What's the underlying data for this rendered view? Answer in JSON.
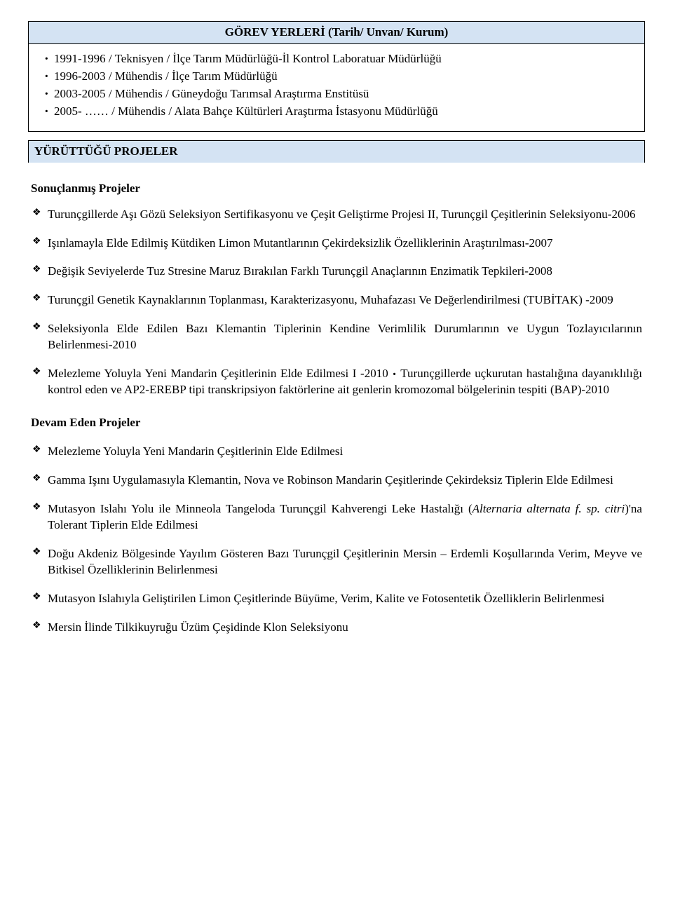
{
  "section1": {
    "title": "GÖREV YERLERİ (Tarih/ Unvan/ Kurum)",
    "items": [
      "1991-1996 / Teknisyen / İlçe Tarım Müdürlüğü-İl Kontrol Laboratuar Müdürlüğü",
      "1996-2003 / Mühendis /  İlçe Tarım Müdürlüğü",
      "2003-2005 / Mühendis / Güneydoğu Tarımsal Araştırma Enstitüsü",
      "2005- …… / Mühendis / Alata Bahçe Kültürleri Araştırma İstasyonu Müdürlüğü"
    ]
  },
  "section2": {
    "title": "YÜRÜTTÜĞÜ PROJELER",
    "completedTitle": "Sonuçlanmış Projeler",
    "completed": [
      "Turunçgillerde Aşı Gözü Seleksiyon Sertifikasyonu ve Çeşit Geliştirme Projesi II, Turunçgil Çeşitlerinin Seleksiyonu-2006",
      "Işınlamayla Elde Edilmiş Kütdiken Limon Mutantlarının Çekirdeksizlik Özelliklerinin Araştırılması-2007",
      "Değişik Seviyelerde Tuz Stresine Maruz Bırakılan Farklı Turunçgil Anaçlarının Enzimatik Tepkileri-2008",
      "Turunçgil Genetik Kaynaklarının Toplanması, Karakterizasyonu, Muhafazası Ve Değerlendirilmesi (TUBİTAK) -2009",
      "Seleksiyonla Elde Edilen Bazı Klemantin Tiplerinin Kendine Verimlilik Durumlarının ve Uygun Tozlayıcılarının Belirlenmesi-2010"
    ],
    "completedMergedA": "Melezleme Yoluyla Yeni Mandarin Çeşitlerinin Elde Edilmesi I -2010 ",
    "completedMergedB": "  Turunçgillerde uçkurutan hastalığına dayanıklılığı kontrol eden ve AP2-EREBP tipi transkripsiyon faktörlerine ait genlerin kromozomal bölgelerinin tespiti (BAP)-2010",
    "ongoingTitle": "Devam Eden Projeler",
    "ongoing": [
      "Melezleme Yoluyla Yeni Mandarin Çeşitlerinin Elde Edilmesi",
      "Gamma Işını Uygulamasıyla Klemantin, Nova ve Robinson Mandarin Çeşitlerinde Çekirdeksiz Tiplerin Elde Edilmesi"
    ],
    "ongoingItalicPre": "Mutasyon Islahı Yolu ile Minneola Tangeloda Turunçgil Kahverengi Leke Hastalığı (",
    "ongoingItalic": "Alternaria alternata f. sp. citri",
    "ongoingItalicPost": ")'na Tolerant Tiplerin Elde Edilmesi",
    "ongoing2": [
      "Doğu Akdeniz Bölgesinde Yayılım Gösteren Bazı Turunçgil Çeşitlerinin Mersin – Erdemli Koşullarında Verim, Meyve ve Bitkisel Özelliklerinin Belirlenmesi",
      "Mutasyon Islahıyla Geliştirilen Limon Çeşitlerinde Büyüme, Verim, Kalite ve Fotosentetik Özelliklerin Belirlenmesi",
      "Mersin İlinde Tilkikuyruğu Üzüm Çeşidinde Klon Seleksiyonu"
    ]
  }
}
